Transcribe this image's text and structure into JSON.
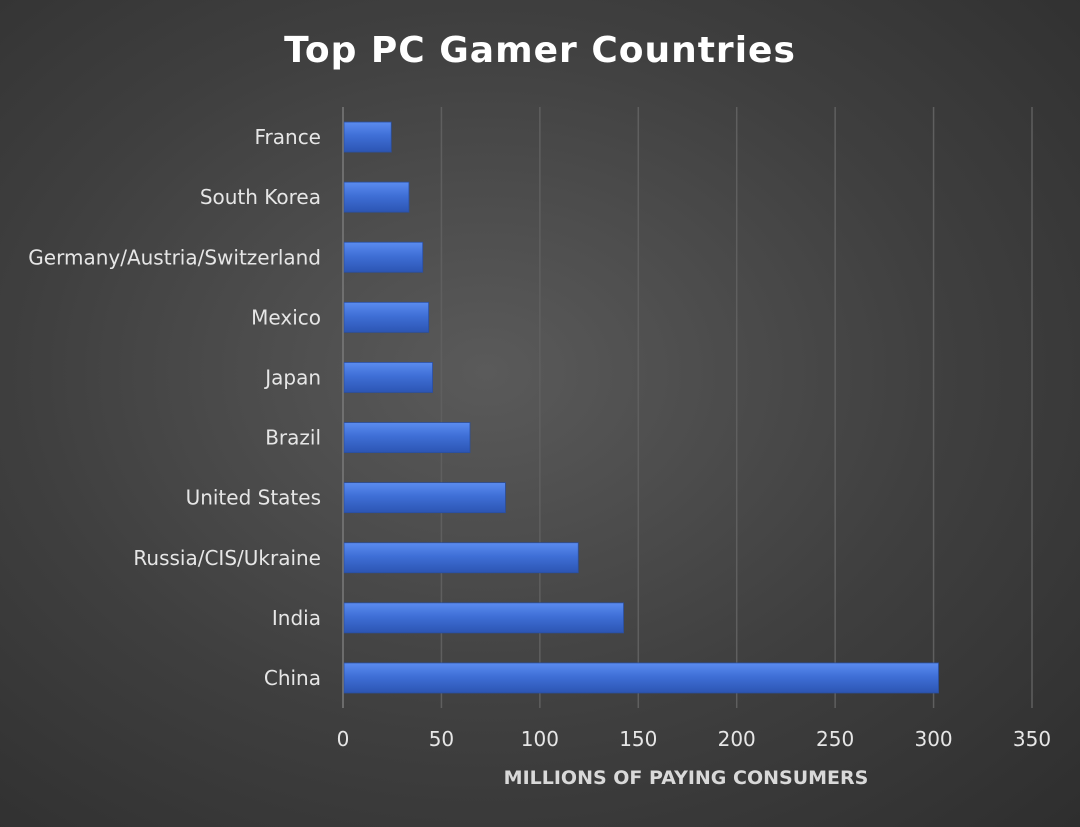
{
  "chart_data": {
    "type": "bar",
    "orientation": "horizontal",
    "title": "Top PC Gamer Countries",
    "xlabel": "MILLIONS OF PAYING CONSUMERS",
    "ylabel": "",
    "categories": [
      "France",
      "South Korea",
      "Germany/Austria/Switzerland",
      "Mexico",
      "Japan",
      "Brazil",
      "United States",
      "Russia/CIS/Ukraine",
      "India",
      "China"
    ],
    "values": [
      24,
      33,
      40,
      43,
      45,
      64,
      82,
      119,
      142,
      302
    ],
    "xlim": [
      0,
      350
    ],
    "xticks": [
      "0",
      "50",
      "100",
      "150",
      "200",
      "250",
      "300",
      "350"
    ],
    "grid": true,
    "legend": "none",
    "bar_color": "#3f6fd6",
    "bar_highlight": "#5b8cf0"
  }
}
